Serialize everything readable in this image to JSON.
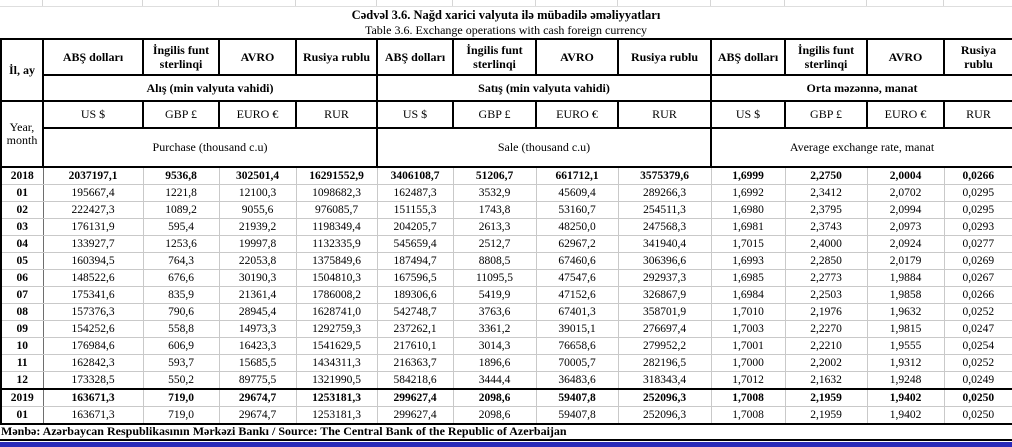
{
  "title": {
    "line1": "Cədvəl 3.6. Nağd xarici valyuta ilə mübadilə əməliyyatları",
    "line2": "Table 3.6. Exchange operations with cash foreign currency"
  },
  "table": {
    "row_label_top": "İl, ay",
    "row_label_bottom": "Year, month",
    "currency_names_az": [
      "ABŞ dolları",
      "İngilis funt sterlinqi",
      "AVRO",
      "Rusiya rublu"
    ],
    "currency_codes": [
      "US $",
      "GBP £",
      "EURO €",
      "RUR"
    ],
    "sections_az": [
      "Alış (min valyuta vahidi)",
      "Satış (min valyuta vahidi)",
      "Orta məzənnə, manat"
    ],
    "sections_en": [
      "Purchase   (thousand c.u)",
      "Sale (thousand c.u)",
      "Average exchange rate, manat"
    ],
    "rows": [
      {
        "label": "2018",
        "bold": true,
        "topline": false,
        "values": [
          "2037197,1",
          "9536,8",
          "302501,4",
          "16291552,9",
          "3406108,7",
          "51206,7",
          "661712,1",
          "3575379,6",
          "1,6999",
          "2,2750",
          "2,0004",
          "0,0266"
        ]
      },
      {
        "label": "01",
        "bold": false,
        "topline": false,
        "values": [
          "195667,4",
          "1221,8",
          "12100,3",
          "1098682,3",
          "162487,3",
          "3532,9",
          "45609,4",
          "289266,3",
          "1,6992",
          "2,3412",
          "2,0702",
          "0,0295"
        ]
      },
      {
        "label": "02",
        "bold": false,
        "topline": false,
        "values": [
          "222427,3",
          "1089,2",
          "9055,6",
          "976085,7",
          "151155,3",
          "1743,8",
          "53160,7",
          "254511,3",
          "1,6980",
          "2,3795",
          "2,0994",
          "0,0295"
        ]
      },
      {
        "label": "03",
        "bold": false,
        "topline": false,
        "values": [
          "176131,9",
          "595,4",
          "21939,2",
          "1198349,4",
          "204205,7",
          "2613,3",
          "48250,0",
          "247568,3",
          "1,6981",
          "2,3743",
          "2,0973",
          "0,0293"
        ]
      },
      {
        "label": "04",
        "bold": false,
        "topline": false,
        "values": [
          "133927,7",
          "1253,6",
          "19997,8",
          "1132335,9",
          "545659,4",
          "2512,7",
          "62967,2",
          "341940,4",
          "1,7015",
          "2,4000",
          "2,0924",
          "0,0277"
        ]
      },
      {
        "label": "05",
        "bold": false,
        "topline": false,
        "values": [
          "160394,5",
          "764,3",
          "22053,8",
          "1375849,6",
          "187494,7",
          "8808,5",
          "67460,6",
          "306396,6",
          "1,6993",
          "2,2850",
          "2,0179",
          "0,0269"
        ]
      },
      {
        "label": "06",
        "bold": false,
        "topline": false,
        "values": [
          "148522,6",
          "676,6",
          "30190,3",
          "1504810,3",
          "167596,5",
          "11095,5",
          "47547,6",
          "292937,3",
          "1,6985",
          "2,2773",
          "1,9884",
          "0,0267"
        ]
      },
      {
        "label": "07",
        "bold": false,
        "topline": false,
        "values": [
          "175341,6",
          "835,9",
          "21361,4",
          "1786008,2",
          "189306,6",
          "5419,9",
          "47152,6",
          "326867,9",
          "1,6984",
          "2,2503",
          "1,9858",
          "0,0266"
        ]
      },
      {
        "label": "08",
        "bold": false,
        "topline": false,
        "values": [
          "157376,3",
          "790,6",
          "28945,4",
          "1628741,0",
          "542748,7",
          "3763,6",
          "67401,3",
          "358701,9",
          "1,7010",
          "2,1976",
          "1,9632",
          "0,0252"
        ]
      },
      {
        "label": "09",
        "bold": false,
        "topline": false,
        "values": [
          "154252,6",
          "558,8",
          "14973,3",
          "1292759,3",
          "237262,1",
          "3361,2",
          "39015,1",
          "276697,4",
          "1,7003",
          "2,2270",
          "1,9815",
          "0,0247"
        ]
      },
      {
        "label": "10",
        "bold": false,
        "topline": false,
        "values": [
          "176984,6",
          "606,9",
          "16423,3",
          "1541629,5",
          "217610,1",
          "3014,3",
          "76658,6",
          "279952,2",
          "1,7001",
          "2,2210",
          "1,9555",
          "0,0254"
        ]
      },
      {
        "label": "11",
        "bold": false,
        "topline": false,
        "values": [
          "162842,3",
          "593,7",
          "15685,5",
          "1434311,3",
          "216363,7",
          "1896,6",
          "70005,7",
          "282196,5",
          "1,7000",
          "2,2002",
          "1,9312",
          "0,0252"
        ]
      },
      {
        "label": "12",
        "bold": false,
        "topline": false,
        "values": [
          "173328,5",
          "550,2",
          "89775,5",
          "1321990,5",
          "584218,6",
          "3444,4",
          "36483,6",
          "318343,4",
          "1,7012",
          "2,1632",
          "1,9248",
          "0,0249"
        ]
      },
      {
        "label": "2019",
        "bold": true,
        "topline": true,
        "values": [
          "163671,3",
          "719,0",
          "29674,7",
          "1253181,3",
          "299627,4",
          "2098,6",
          "59407,8",
          "252096,3",
          "1,7008",
          "2,1959",
          "1,9402",
          "0,0250"
        ]
      },
      {
        "label": "01",
        "bold": false,
        "topline": false,
        "values": [
          "163671,3",
          "719,0",
          "29674,7",
          "1253181,3",
          "299627,4",
          "2098,6",
          "59407,8",
          "252096,3",
          "1,7008",
          "2,1959",
          "1,9402",
          "0,0250"
        ]
      }
    ]
  },
  "footer": {
    "source": "Mənbə: Azərbaycan Respublikasının Mərkəzi Bankı / Source: The Central Bank of the Republic of Azerbaijan"
  },
  "colors": {
    "accent_bar": "#2a2ab8"
  }
}
